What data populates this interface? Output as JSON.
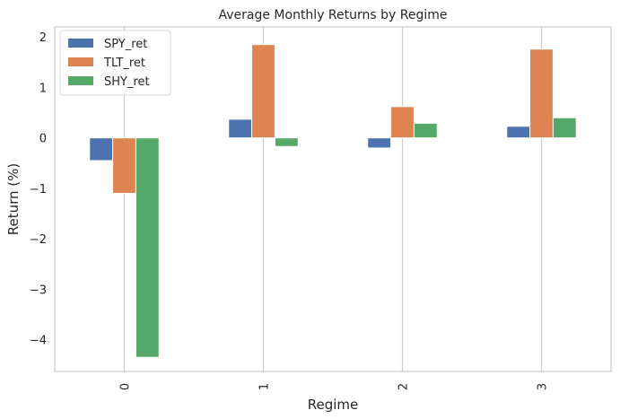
{
  "chart_data": {
    "type": "bar",
    "title": "Average Monthly Returns by Regime",
    "xlabel": "Regime",
    "ylabel": "Return (%)",
    "categories": [
      "0",
      "1",
      "2",
      "3"
    ],
    "yticks": [
      "2",
      "1",
      "0",
      "−1",
      "−2",
      "−3",
      "−4"
    ],
    "ylim": [
      -4.63,
      2.2
    ],
    "grid": "vertical",
    "legend_position": "top-left",
    "series": [
      {
        "name": "SPY_ret",
        "color": "#4c72b0",
        "values": [
          -0.45,
          0.37,
          -0.2,
          0.23
        ]
      },
      {
        "name": "TLT_ret",
        "color": "#dd8452",
        "values": [
          -1.1,
          1.85,
          0.62,
          1.76
        ]
      },
      {
        "name": "SHY_ret",
        "color": "#55a868",
        "values": [
          -4.35,
          -0.17,
          0.29,
          0.4
        ]
      }
    ]
  }
}
